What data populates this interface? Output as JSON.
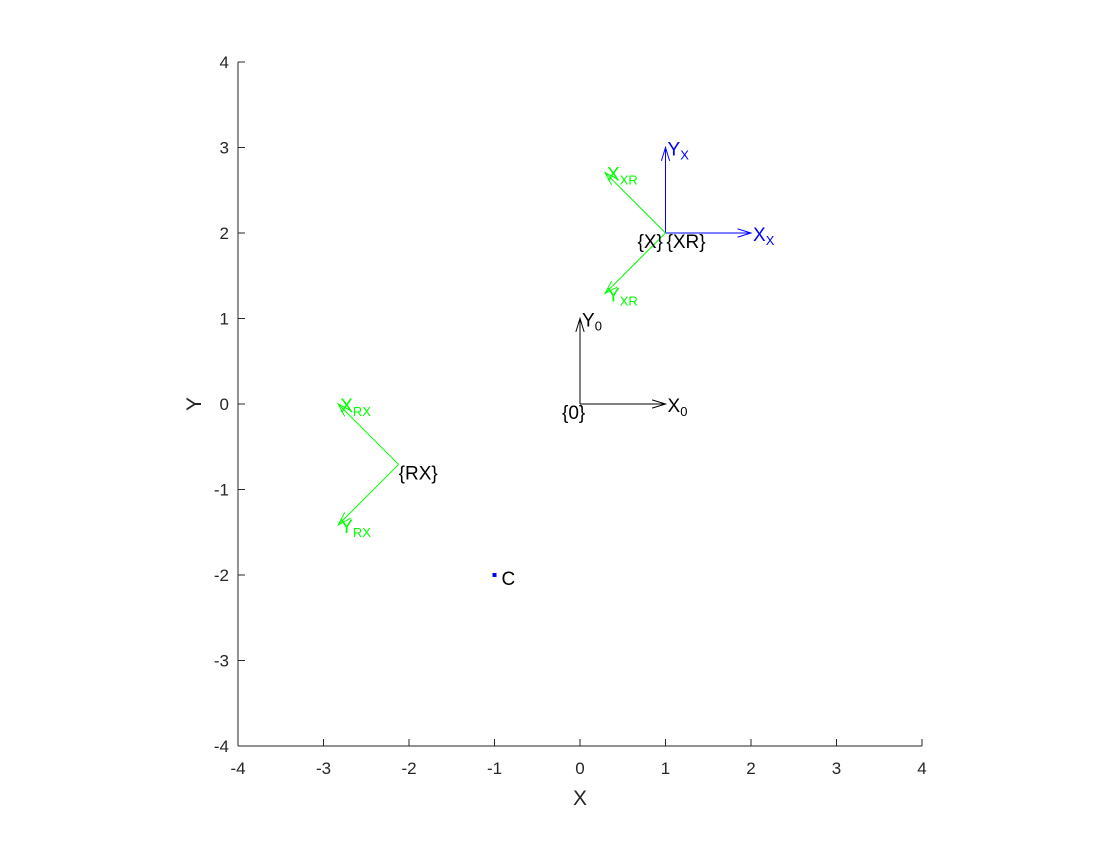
{
  "chart_data": {
    "type": "scatter",
    "xlabel": "X",
    "ylabel": "Y",
    "xlim": [
      -4,
      4
    ],
    "ylim": [
      -4,
      4
    ],
    "xticks": [
      "-4",
      "-3",
      "-2",
      "-1",
      "0",
      "1",
      "2",
      "3",
      "4"
    ],
    "yticks": [
      "-4",
      "-3",
      "-2",
      "-1",
      "0",
      "1",
      "2",
      "3",
      "4"
    ],
    "grid": false,
    "colors": {
      "black": "#000000",
      "blue": "#0000ff",
      "green": "#00ff00",
      "axis": "#262626"
    },
    "frames": [
      {
        "label": "{0}",
        "color": "#000000",
        "origin": [
          0,
          0
        ],
        "axes": [
          {
            "tip": [
              1,
              0
            ],
            "label_main": "X",
            "label_sub": "0"
          },
          {
            "tip": [
              0,
              1
            ],
            "label_main": "Y",
            "label_sub": "0"
          }
        ]
      },
      {
        "label": "{X}",
        "color": "#0000ff",
        "origin": [
          1,
          2
        ],
        "axes": [
          {
            "tip": [
              2,
              2
            ],
            "label_main": "X",
            "label_sub": "X"
          },
          {
            "tip": [
              1,
              3
            ],
            "label_main": "Y",
            "label_sub": "X"
          }
        ]
      },
      {
        "label": "{XR}",
        "color": "#00ff00",
        "origin": [
          1,
          2
        ],
        "axes": [
          {
            "tip": [
              0.293,
              2.707
            ],
            "label_main": "X",
            "label_sub": "XR"
          },
          {
            "tip": [
              0.293,
              1.293
            ],
            "label_main": "Y",
            "label_sub": "XR"
          }
        ]
      },
      {
        "label": "{RX}",
        "color": "#00ff00",
        "origin": [
          -2.121,
          -0.707
        ],
        "axes": [
          {
            "tip": [
              -2.828,
              0
            ],
            "label_main": "X",
            "label_sub": "RX"
          },
          {
            "tip": [
              -2.828,
              -1.414
            ],
            "label_main": "Y",
            "label_sub": "RX"
          }
        ]
      }
    ],
    "points": [
      {
        "label": "C",
        "x": -1,
        "y": -2,
        "color": "#0000ff"
      }
    ]
  }
}
